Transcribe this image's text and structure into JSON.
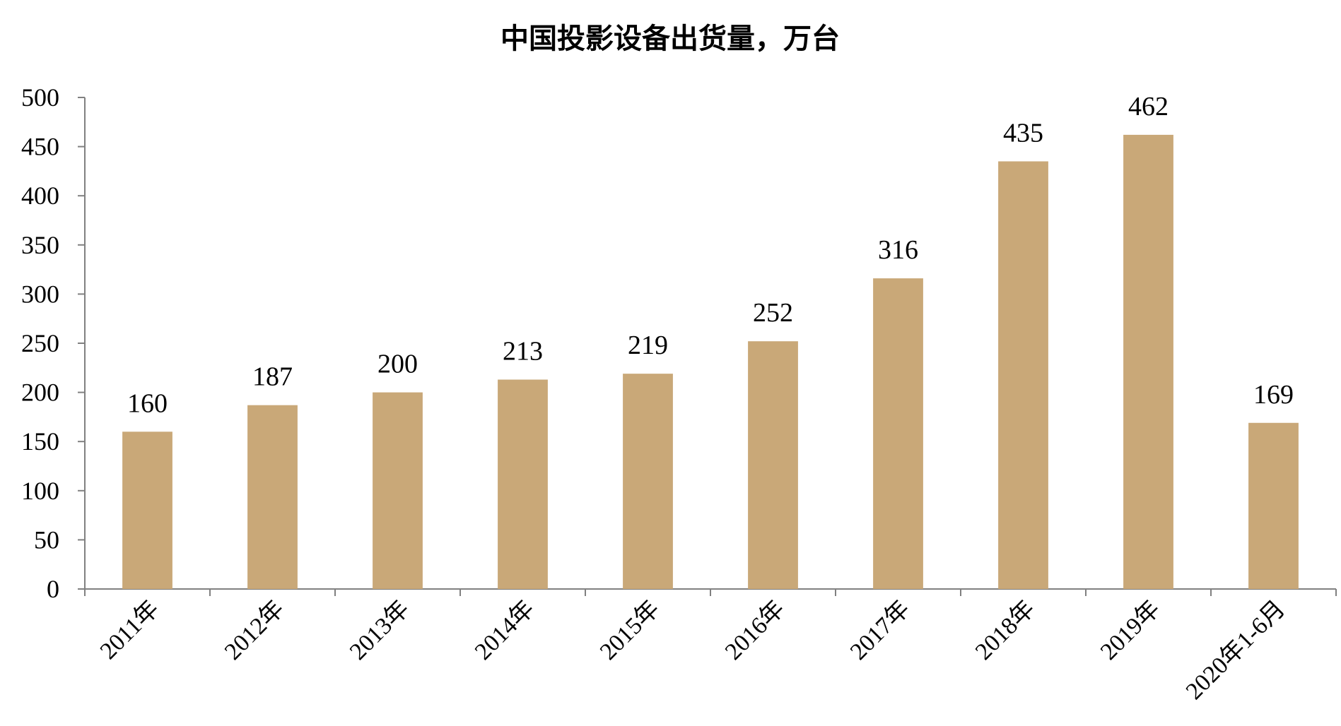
{
  "chart_data": {
    "type": "bar",
    "title": "中国投影设备出货量，万台",
    "categories": [
      "2011年",
      "2012年",
      "2013年",
      "2014年",
      "2015年",
      "2016年",
      "2017年",
      "2018年",
      "2019年",
      "2020年1-6月"
    ],
    "values": [
      160,
      187,
      200,
      213,
      219,
      252,
      316,
      435,
      462,
      169
    ],
    "ylim": [
      0,
      500
    ],
    "yticks": [
      0,
      50,
      100,
      150,
      200,
      250,
      300,
      350,
      400,
      450,
      500
    ],
    "xlabel": "",
    "ylabel": "",
    "grid": false,
    "legend": "none",
    "data_labels": true,
    "bar_color": "#C9A878"
  }
}
